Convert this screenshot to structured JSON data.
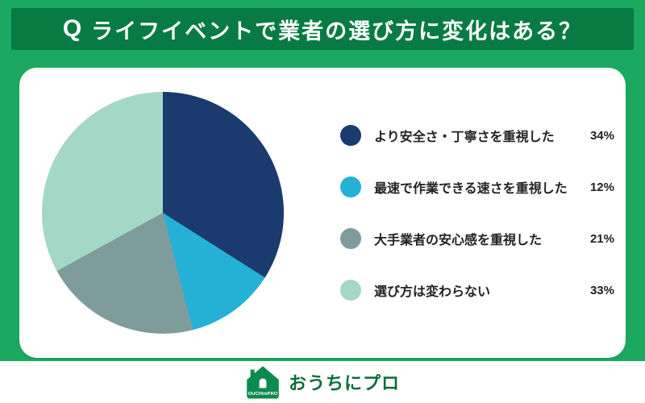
{
  "header": {
    "question_prefix": "Q",
    "title": "ライフイベントで業者の選び方に変化はある？"
  },
  "chart_data": {
    "type": "pie",
    "title": "ライフイベントで業者の選び方に変化はある？",
    "start_angle_deg": 0,
    "direction": "clockwise",
    "legend_position": "right",
    "segments": [
      {
        "label": "より安全さ・丁寧さを重視した",
        "value": 34,
        "display": "34%",
        "color": "#1b3a6d"
      },
      {
        "label": "最速で作業できる速さを重視した",
        "value": 12,
        "display": "12%",
        "color": "#25b1d5"
      },
      {
        "label": "大手業者の安心感を重視した",
        "value": 21,
        "display": "21%",
        "color": "#7f9c9c"
      },
      {
        "label": "選び方は変わらない",
        "value": 33,
        "display": "33%",
        "color": "#a3d7c6"
      }
    ]
  },
  "footer": {
    "logo_text": "OUCHIniPRO",
    "brand_name": "おうちにプロ"
  },
  "colors": {
    "page_bg": "#1aa95f",
    "header_bg": "#077b43",
    "card_bg": "#ffffff",
    "text_dark": "#222222",
    "brand_green": "#0d6b3d"
  }
}
